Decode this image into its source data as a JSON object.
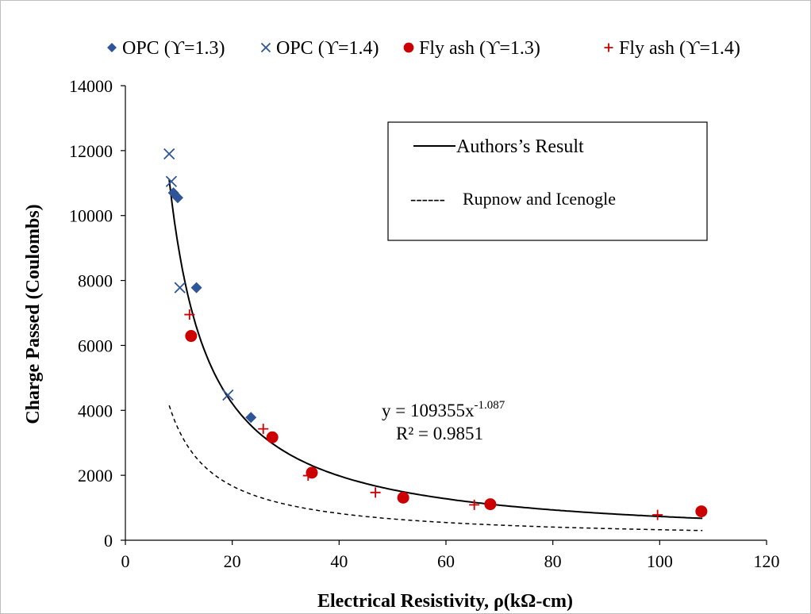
{
  "chart_data": {
    "type": "scatter",
    "title": "",
    "xlabel": "Electrical Resistivity, ρ(kΩ-cm)",
    "ylabel": "Charge Passed (Coulombs)",
    "xlim": [
      0,
      120
    ],
    "ylim": [
      0,
      14000
    ],
    "x_ticks": [
      "0",
      "20",
      "40",
      "60",
      "80",
      "100",
      "120"
    ],
    "y_ticks": [
      "0",
      "2000",
      "4000",
      "6000",
      "8000",
      "10000",
      "12000",
      "14000"
    ],
    "grid": false,
    "legend_position": "top",
    "series": [
      {
        "name": "OPC (ϒ=1.3)",
        "marker": "diamond",
        "color": "#2e5597",
        "points": [
          [
            9.0,
            10700
          ],
          [
            9.8,
            10550
          ],
          [
            13.3,
            7780
          ],
          [
            23.5,
            3780
          ]
        ]
      },
      {
        "name": "OPC (ϒ=1.4)",
        "marker": "x",
        "color": "#2e5597",
        "points": [
          [
            8.2,
            11900
          ],
          [
            8.6,
            11050
          ],
          [
            10.2,
            7780
          ],
          [
            19.2,
            4470
          ]
        ]
      },
      {
        "name": "Fly ash (ϒ=1.3)",
        "marker": "circle",
        "color": "#cc0000",
        "points": [
          [
            12.3,
            6290
          ],
          [
            27.5,
            3170
          ],
          [
            34.9,
            2080
          ],
          [
            52.0,
            1310
          ],
          [
            68.3,
            1110
          ],
          [
            107.8,
            890
          ]
        ]
      },
      {
        "name": "Fly ash (ϒ=1.4)",
        "marker": "plus",
        "color": "#cc0000",
        "points": [
          [
            12.0,
            6950
          ],
          [
            25.8,
            3430
          ],
          [
            34.2,
            1990
          ],
          [
            46.8,
            1470
          ],
          [
            65.3,
            1090
          ],
          [
            99.6,
            780
          ]
        ]
      }
    ],
    "curves": [
      {
        "name": "Authors's Result",
        "style": "solid",
        "color": "#000000",
        "coef": 109355,
        "exp": -1.087,
        "x_range": [
          8.2,
          108
        ]
      },
      {
        "name": "Rupnow and Icenogle",
        "style": "dashed",
        "color": "#000000",
        "coef": 35500,
        "exp": -1.02,
        "x_range": [
          8.2,
          108
        ]
      }
    ],
    "annotations": {
      "equation_main": "y = 109355x",
      "equation_exponent": "-1.087",
      "r_squared": "R² = 0.9851"
    },
    "line_legend": {
      "solid_label": "Authors’s Result",
      "dashed_prefix": "------",
      "dashed_label": "Rupnow and Icenogle"
    }
  }
}
